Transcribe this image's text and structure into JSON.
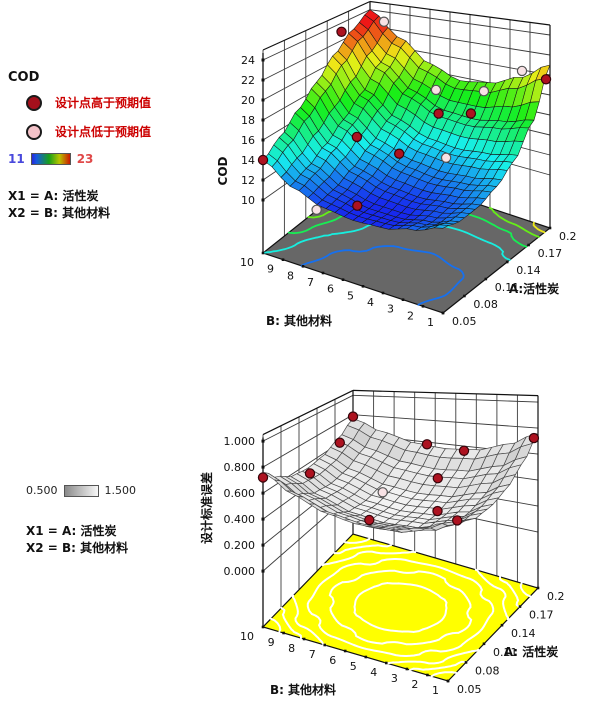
{
  "page": {
    "background": "#ffffff"
  },
  "legend_top": {
    "title": "COD",
    "above_label": "设计点高于预期值",
    "below_label": "设计点低于预期值",
    "scale_min": "11",
    "scale_max": "23",
    "x1_label": "X1 = A: 活性炭",
    "x2_label": "X2 = B: 其他材料",
    "accent_red": "#cc0000",
    "min_color": "#2828d8",
    "max_color": "#cc1800"
  },
  "legend_bottom": {
    "scale_min": "0.500",
    "scale_max": "1.500",
    "x1_label": "X1 = A: 活性炭",
    "x2_label": "X2 = B: 其他材料"
  },
  "chart_data": [
    {
      "type": "surface3d",
      "name": "cod-response-surface",
      "title": "COD",
      "x_axis": {
        "label": "A:活性炭",
        "range": [
          0.05,
          0.2
        ],
        "ticks": [
          "0.05",
          "0.08",
          "0.11",
          "0.14",
          "0.17",
          "0.2"
        ]
      },
      "y_axis": {
        "label": "B: 其他材料",
        "range": [
          1,
          10
        ],
        "ticks": [
          "10",
          "9",
          "8",
          "7",
          "6",
          "5",
          "4",
          "3",
          "2",
          "1"
        ]
      },
      "z_axis": {
        "label": "COD",
        "range": [
          10,
          24
        ],
        "ticks": [
          "24",
          "22",
          "20",
          "18",
          "16",
          "14",
          "12",
          "10"
        ]
      },
      "color_range": [
        11,
        23
      ],
      "floor_color": "#676767",
      "floor_levels": [
        12,
        14,
        16,
        18,
        20,
        22
      ],
      "contour_style": "colormap",
      "surface": {
        "grid_A": [
          0.05,
          0.075,
          0.1,
          0.125,
          0.15,
          0.175,
          0.2
        ],
        "grid_B": [
          1,
          2.5,
          4,
          5.5,
          7,
          8.5,
          10
        ],
        "z_grid": [
          [
            13.0,
            12.4,
            12.4,
            13.0,
            14.2,
            16.6,
            21.0
          ],
          [
            11.9,
            11.5,
            11.7,
            12.4,
            13.6,
            15.8,
            19.2
          ],
          [
            11.1,
            10.9,
            11.3,
            12.1,
            13.3,
            15.3,
            18.0
          ],
          [
            10.9,
            10.9,
            11.5,
            12.4,
            13.6,
            15.5,
            17.6
          ],
          [
            11.2,
            11.5,
            12.3,
            13.4,
            14.8,
            16.8,
            18.8
          ],
          [
            12.2,
            12.9,
            14.0,
            15.4,
            17.0,
            19.2,
            21.2
          ],
          [
            14.0,
            15.3,
            17.0,
            18.8,
            20.8,
            22.6,
            24.0
          ]
        ]
      },
      "points": [
        {
          "A": 0.05,
          "B": 10,
          "z": 14.0,
          "type": "above"
        },
        {
          "A": 0.16,
          "B": 10,
          "z": 23.0,
          "type": "above"
        },
        {
          "A": 0.2,
          "B": 9.3,
          "z": 22.8,
          "type": "below"
        },
        {
          "A": 0.12,
          "B": 7.8,
          "z": 14.4,
          "type": "above"
        },
        {
          "A": 0.14,
          "B": 6.4,
          "z": 12.4,
          "type": "above"
        },
        {
          "A": 0.055,
          "B": 7.5,
          "z": 10.4,
          "type": "below"
        },
        {
          "A": 0.07,
          "B": 6.0,
          "z": 11.0,
          "type": "above"
        },
        {
          "A": 0.2,
          "B": 6.7,
          "z": 16.0,
          "type": "below"
        },
        {
          "A": 0.17,
          "B": 5.5,
          "z": 15.6,
          "type": "above"
        },
        {
          "A": 0.19,
          "B": 4.6,
          "z": 15.0,
          "type": "above"
        },
        {
          "A": 0.197,
          "B": 4.2,
          "z": 17.2,
          "type": "below"
        },
        {
          "A": 0.2,
          "B": 2.4,
          "z": 19.9,
          "type": "below"
        },
        {
          "A": 0.2,
          "B": 1.2,
          "z": 19.5,
          "type": "above"
        },
        {
          "A": 0.13,
          "B": 3.7,
          "z": 14.1,
          "type": "below"
        }
      ]
    },
    {
      "type": "surface3d",
      "name": "std-error-of-design-surface",
      "title": "设计标准误差",
      "x_axis": {
        "label": "A: 活性炭",
        "range": [
          0.05,
          0.2
        ],
        "ticks": [
          "0.05",
          "0.08",
          "0.11",
          "0.14",
          "0.17",
          "0.2"
        ]
      },
      "y_axis": {
        "label": "B: 其他材料",
        "range": [
          1,
          10
        ],
        "ticks": [
          "10",
          "9",
          "8",
          "7",
          "6",
          "5",
          "4",
          "3",
          "2",
          "1"
        ]
      },
      "z_axis": {
        "label": "设计标准误差",
        "range": [
          0,
          1
        ],
        "ticks": [
          "1.000",
          "0.800",
          "0.600",
          "0.400",
          "0.200",
          "0.000"
        ]
      },
      "color_range": [
        0.5,
        1.5
      ],
      "floor_color": "#ffff00",
      "floor_levels": [
        0.4,
        0.46,
        0.52,
        0.58,
        0.64,
        0.7
      ],
      "contour_style": "white",
      "surface": {
        "grid_A": [
          0.05,
          0.075,
          0.1,
          0.125,
          0.15,
          0.175,
          0.2
        ],
        "grid_B": [
          1,
          2.5,
          4,
          5.5,
          7,
          8.5,
          10
        ],
        "z_grid": [
          [
            0.76,
            0.65,
            0.58,
            0.56,
            0.58,
            0.65,
            0.76
          ],
          [
            0.65,
            0.54,
            0.47,
            0.45,
            0.47,
            0.54,
            0.65
          ],
          [
            0.58,
            0.47,
            0.4,
            0.38,
            0.4,
            0.47,
            0.58
          ],
          [
            0.56,
            0.45,
            0.38,
            0.36,
            0.38,
            0.45,
            0.56
          ],
          [
            0.58,
            0.47,
            0.4,
            0.38,
            0.4,
            0.47,
            0.58
          ],
          [
            0.65,
            0.54,
            0.47,
            0.45,
            0.47,
            0.54,
            0.65
          ],
          [
            0.76,
            0.65,
            0.58,
            0.56,
            0.58,
            0.65,
            0.76
          ]
        ]
      },
      "points": [
        {
          "A": 0.05,
          "B": 10,
          "z": 0.72,
          "type": "above"
        },
        {
          "A": 0.118,
          "B": 9.7,
          "z": 0.55,
          "type": "above"
        },
        {
          "A": 0.178,
          "B": 10,
          "z": 0.6,
          "type": "above"
        },
        {
          "A": 0.2,
          "B": 10,
          "z": 0.78,
          "type": "above"
        },
        {
          "A": 0.2,
          "B": 6.4,
          "z": 0.58,
          "type": "above"
        },
        {
          "A": 0.2,
          "B": 4.6,
          "z": 0.56,
          "type": "above"
        },
        {
          "A": 0.2,
          "B": 1.2,
          "z": 0.72,
          "type": "above"
        },
        {
          "A": 0.17,
          "B": 5.0,
          "z": 0.45,
          "type": "above"
        },
        {
          "A": 0.125,
          "B": 3.7,
          "z": 0.42,
          "type": "above"
        },
        {
          "A": 0.133,
          "B": 6.6,
          "z": 0.44,
          "type": "below"
        },
        {
          "A": 0.073,
          "B": 5.5,
          "z": 0.5,
          "type": "above"
        },
        {
          "A": 0.103,
          "B": 2.1,
          "z": 0.5,
          "type": "above"
        }
      ]
    }
  ]
}
